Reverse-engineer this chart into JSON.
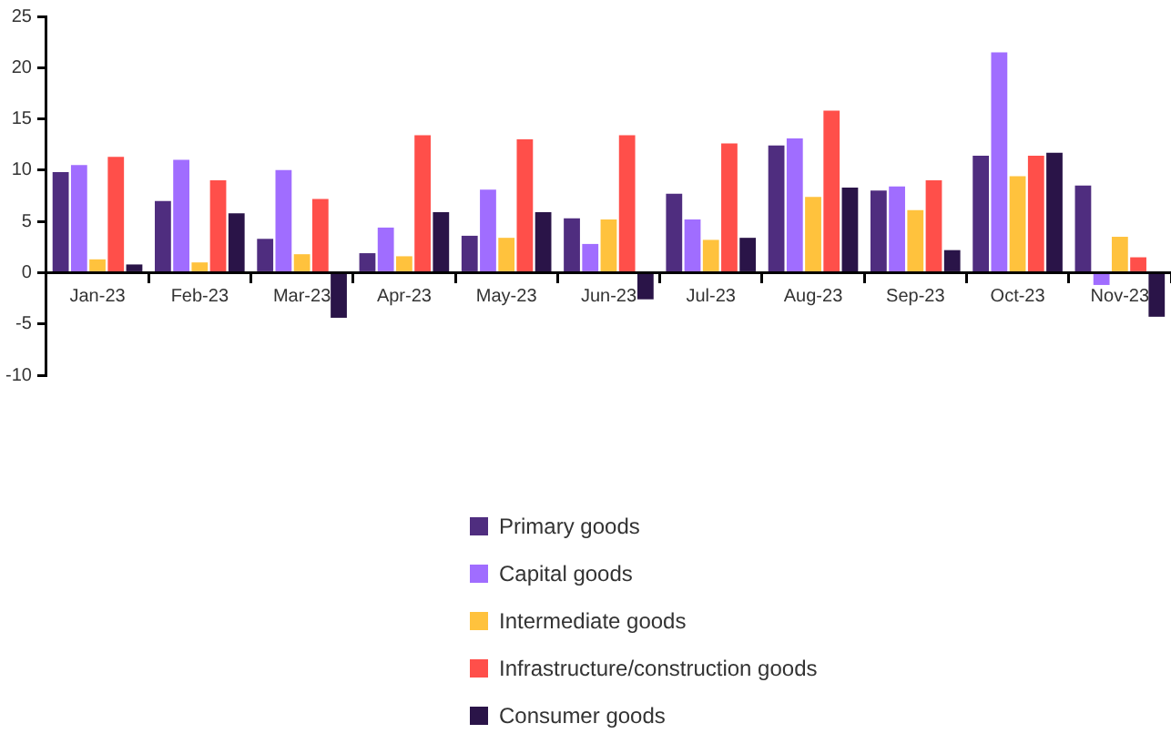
{
  "chart_data": {
    "type": "bar",
    "categories": [
      "Jan-23",
      "Feb-23",
      "Mar-23",
      "Apr-23",
      "May-23",
      "Jun-23",
      "Jul-23",
      "Aug-23",
      "Sep-23",
      "Oct-23",
      "Nov-23"
    ],
    "series": [
      {
        "name": "Primary goods",
        "color": "#4f2d7f",
        "values": [
          9.8,
          7.0,
          3.3,
          1.9,
          3.6,
          5.3,
          7.7,
          12.4,
          8.0,
          11.4,
          8.5
        ]
      },
      {
        "name": "Capital goods",
        "color": "#a06dff",
        "values": [
          10.5,
          11.0,
          10.0,
          4.4,
          8.1,
          2.8,
          5.2,
          13.1,
          8.4,
          21.5,
          -1.2
        ]
      },
      {
        "name": "Intermediate goods",
        "color": "#ffc23d",
        "values": [
          1.3,
          1.0,
          1.8,
          1.6,
          3.4,
          5.2,
          3.2,
          7.4,
          6.1,
          9.4,
          3.5
        ]
      },
      {
        "name": "Infrastructure/construction goods",
        "color": "#ff4f4a",
        "values": [
          11.3,
          9.0,
          7.2,
          13.4,
          13.0,
          13.4,
          12.6,
          15.8,
          9.0,
          11.4,
          1.5
        ]
      },
      {
        "name": "Consumer goods",
        "color": "#2a1448",
        "values": [
          0.8,
          5.8,
          -4.4,
          5.9,
          5.9,
          -2.6,
          3.4,
          8.3,
          2.2,
          11.7,
          -4.3
        ]
      }
    ],
    "ylim": [
      -10,
      25
    ],
    "yticks": [
      -10,
      -5,
      0,
      5,
      10,
      15,
      20,
      25
    ],
    "grid": false,
    "legend": "bottom"
  }
}
